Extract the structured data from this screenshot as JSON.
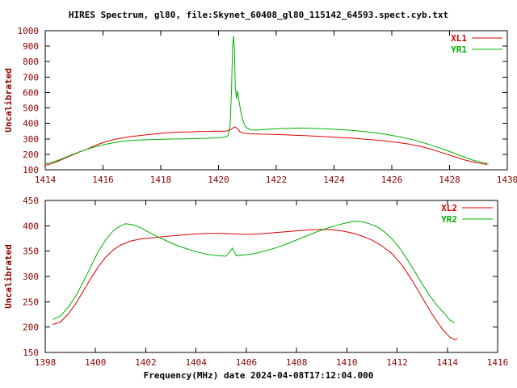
{
  "title": "HIRES Spectrum, gl80, file:Skynet_60408_gl80_115142_64593.spect.cyb.txt",
  "x_axis_label": "Frequency(MHz) date 2024-04-08T17:12:04.000",
  "colors": {
    "background": "#ffffff",
    "box": "#000000",
    "axis_text": "#8b0000",
    "title_text": "#000000",
    "red_trace": "#dd0000",
    "green_trace": "#00b000"
  },
  "chart_data": [
    {
      "type": "line",
      "title": "",
      "xlabel": "",
      "ylabel": "Uncalibrated",
      "xlim": [
        1414,
        1430
      ],
      "ylim": [
        100,
        1000
      ],
      "xticks": [
        1414,
        1416,
        1418,
        1420,
        1422,
        1424,
        1426,
        1428,
        1430
      ],
      "yticks": [
        100,
        200,
        300,
        400,
        500,
        600,
        700,
        800,
        900,
        1000
      ],
      "grid": false,
      "legend_position": "top-right",
      "series": [
        {
          "name": "XL1",
          "color": "#dd0000",
          "points": [
            [
              1414.0,
              128
            ],
            [
              1414.2,
              138
            ],
            [
              1414.4,
              152
            ],
            [
              1414.6,
              168
            ],
            [
              1414.8,
              184
            ],
            [
              1415.0,
              200
            ],
            [
              1415.2,
              216
            ],
            [
              1415.4,
              230
            ],
            [
              1415.6,
              246
            ],
            [
              1415.8,
              262
            ],
            [
              1416.0,
              276
            ],
            [
              1416.2,
              288
            ],
            [
              1416.4,
              296
            ],
            [
              1416.6,
              304
            ],
            [
              1416.8,
              310
            ],
            [
              1417.0,
              316
            ],
            [
              1417.2,
              320
            ],
            [
              1417.5,
              326
            ],
            [
              1417.8,
              332
            ],
            [
              1418.1,
              338
            ],
            [
              1418.4,
              341
            ],
            [
              1418.7,
              344
            ],
            [
              1419.0,
              345
            ],
            [
              1419.3,
              347
            ],
            [
              1419.6,
              348
            ],
            [
              1419.9,
              350
            ],
            [
              1420.1,
              349
            ],
            [
              1420.3,
              351
            ],
            [
              1420.45,
              362
            ],
            [
              1420.55,
              378
            ],
            [
              1420.65,
              368
            ],
            [
              1420.75,
              345
            ],
            [
              1420.9,
              336
            ],
            [
              1421.1,
              333
            ],
            [
              1421.4,
              331
            ],
            [
              1421.7,
              330
            ],
            [
              1422.0,
              328
            ],
            [
              1422.3,
              326
            ],
            [
              1422.6,
              324
            ],
            [
              1423.0,
              321
            ],
            [
              1423.4,
              317
            ],
            [
              1423.8,
              313
            ],
            [
              1424.2,
              309
            ],
            [
              1424.6,
              305
            ],
            [
              1425.0,
              299
            ],
            [
              1425.4,
              293
            ],
            [
              1425.8,
              286
            ],
            [
              1426.2,
              277
            ],
            [
              1426.6,
              266
            ],
            [
              1427.0,
              251
            ],
            [
              1427.3,
              236
            ],
            [
              1427.6,
              219
            ],
            [
              1427.9,
              201
            ],
            [
              1428.2,
              183
            ],
            [
              1428.5,
              165
            ],
            [
              1428.8,
              150
            ],
            [
              1429.1,
              140
            ],
            [
              1429.3,
              134
            ]
          ]
        },
        {
          "name": "YR1",
          "color": "#00b000",
          "points": [
            [
              1414.0,
              138
            ],
            [
              1414.2,
              146
            ],
            [
              1414.4,
              158
            ],
            [
              1414.6,
              172
            ],
            [
              1414.8,
              188
            ],
            [
              1415.0,
              203
            ],
            [
              1415.2,
              217
            ],
            [
              1415.4,
              230
            ],
            [
              1415.6,
              242
            ],
            [
              1415.8,
              252
            ],
            [
              1416.0,
              261
            ],
            [
              1416.2,
              269
            ],
            [
              1416.4,
              276
            ],
            [
              1416.6,
              282
            ],
            [
              1416.8,
              287
            ],
            [
              1417.0,
              290
            ],
            [
              1417.3,
              293
            ],
            [
              1417.6,
              295
            ],
            [
              1418.0,
              297
            ],
            [
              1418.4,
              299
            ],
            [
              1418.8,
              300
            ],
            [
              1419.2,
              302
            ],
            [
              1419.6,
              304
            ],
            [
              1420.0,
              307
            ],
            [
              1420.2,
              311
            ],
            [
              1420.33,
              322
            ],
            [
              1420.4,
              380
            ],
            [
              1420.45,
              620
            ],
            [
              1420.49,
              905
            ],
            [
              1420.52,
              965
            ],
            [
              1420.55,
              880
            ],
            [
              1420.58,
              640
            ],
            [
              1420.62,
              560
            ],
            [
              1420.66,
              610
            ],
            [
              1420.7,
              555
            ],
            [
              1420.75,
              500
            ],
            [
              1420.8,
              450
            ],
            [
              1420.87,
              405
            ],
            [
              1420.95,
              375
            ],
            [
              1421.1,
              358
            ],
            [
              1421.3,
              357
            ],
            [
              1421.6,
              361
            ],
            [
              1421.9,
              364
            ],
            [
              1422.2,
              367
            ],
            [
              1422.5,
              369
            ],
            [
              1422.8,
              370
            ],
            [
              1423.1,
              369
            ],
            [
              1423.4,
              367
            ],
            [
              1423.7,
              365
            ],
            [
              1424.0,
              362
            ],
            [
              1424.3,
              359
            ],
            [
              1424.6,
              355
            ],
            [
              1424.9,
              350
            ],
            [
              1425.2,
              344
            ],
            [
              1425.5,
              337
            ],
            [
              1425.8,
              329
            ],
            [
              1426.1,
              319
            ],
            [
              1426.4,
              308
            ],
            [
              1426.7,
              295
            ],
            [
              1427.0,
              280
            ],
            [
              1427.3,
              263
            ],
            [
              1427.6,
              245
            ],
            [
              1427.9,
              225
            ],
            [
              1428.2,
              204
            ],
            [
              1428.5,
              183
            ],
            [
              1428.8,
              163
            ],
            [
              1429.1,
              148
            ],
            [
              1429.35,
              139
            ]
          ]
        }
      ]
    },
    {
      "type": "line",
      "title": "",
      "xlabel": "Frequency(MHz) date 2024-04-08T17:12:04.000",
      "ylabel": "Uncalibrated",
      "xlim": [
        1398,
        1416
      ],
      "ylim": [
        150,
        450
      ],
      "xticks": [
        1398,
        1400,
        1402,
        1404,
        1406,
        1408,
        1410,
        1412,
        1414,
        1416
      ],
      "yticks": [
        150,
        200,
        250,
        300,
        350,
        400,
        450
      ],
      "grid": false,
      "legend_position": "top-right",
      "series": [
        {
          "name": "XL2",
          "color": "#dd0000",
          "points": [
            [
              1398.3,
              205
            ],
            [
              1398.6,
              210
            ],
            [
              1398.9,
              225
            ],
            [
              1399.2,
              245
            ],
            [
              1399.5,
              270
            ],
            [
              1399.8,
              295
            ],
            [
              1400.1,
              318
            ],
            [
              1400.4,
              338
            ],
            [
              1400.7,
              352
            ],
            [
              1401.0,
              362
            ],
            [
              1401.4,
              370
            ],
            [
              1401.8,
              374
            ],
            [
              1402.2,
              376
            ],
            [
              1402.6,
              378
            ],
            [
              1403.0,
              380
            ],
            [
              1403.5,
              382
            ],
            [
              1404.0,
              384
            ],
            [
              1404.5,
              385
            ],
            [
              1405.0,
              385
            ],
            [
              1405.5,
              384
            ],
            [
              1406.0,
              383
            ],
            [
              1406.5,
              384
            ],
            [
              1407.0,
              386
            ],
            [
              1407.5,
              388
            ],
            [
              1408.0,
              390
            ],
            [
              1408.5,
              392
            ],
            [
              1409.0,
              393
            ],
            [
              1409.4,
              392
            ],
            [
              1409.8,
              390
            ],
            [
              1410.2,
              386
            ],
            [
              1410.6,
              380
            ],
            [
              1411.0,
              372
            ],
            [
              1411.4,
              360
            ],
            [
              1411.8,
              345
            ],
            [
              1412.2,
              322
            ],
            [
              1412.6,
              292
            ],
            [
              1413.0,
              258
            ],
            [
              1413.4,
              225
            ],
            [
              1413.8,
              196
            ],
            [
              1414.1,
              180
            ],
            [
              1414.3,
              175
            ],
            [
              1414.4,
              178
            ]
          ]
        },
        {
          "name": "YR2",
          "color": "#00b000",
          "points": [
            [
              1398.3,
              215
            ],
            [
              1398.6,
              222
            ],
            [
              1398.9,
              238
            ],
            [
              1399.2,
              260
            ],
            [
              1399.5,
              288
            ],
            [
              1399.8,
              318
            ],
            [
              1400.1,
              348
            ],
            [
              1400.4,
              372
            ],
            [
              1400.7,
              390
            ],
            [
              1401.0,
              400
            ],
            [
              1401.2,
              404
            ],
            [
              1401.5,
              402
            ],
            [
              1401.8,
              396
            ],
            [
              1402.1,
              388
            ],
            [
              1402.4,
              380
            ],
            [
              1402.8,
              371
            ],
            [
              1403.2,
              362
            ],
            [
              1403.6,
              355
            ],
            [
              1404.0,
              349
            ],
            [
              1404.4,
              344
            ],
            [
              1404.8,
              341
            ],
            [
              1405.2,
              340
            ],
            [
              1405.45,
              356
            ],
            [
              1405.6,
              341
            ],
            [
              1406.0,
              343
            ],
            [
              1406.4,
              346
            ],
            [
              1406.8,
              351
            ],
            [
              1407.2,
              357
            ],
            [
              1407.6,
              364
            ],
            [
              1408.0,
              372
            ],
            [
              1408.4,
              380
            ],
            [
              1408.8,
              388
            ],
            [
              1409.2,
              395
            ],
            [
              1409.6,
              401
            ],
            [
              1410.0,
              406
            ],
            [
              1410.3,
              409
            ],
            [
              1410.6,
              408
            ],
            [
              1410.9,
              404
            ],
            [
              1411.2,
              398
            ],
            [
              1411.5,
              388
            ],
            [
              1411.8,
              374
            ],
            [
              1412.1,
              356
            ],
            [
              1412.4,
              334
            ],
            [
              1412.7,
              310
            ],
            [
              1413.0,
              285
            ],
            [
              1413.3,
              262
            ],
            [
              1413.6,
              242
            ],
            [
              1413.9,
              226
            ],
            [
              1414.1,
              214
            ],
            [
              1414.3,
              208
            ]
          ]
        }
      ]
    }
  ]
}
